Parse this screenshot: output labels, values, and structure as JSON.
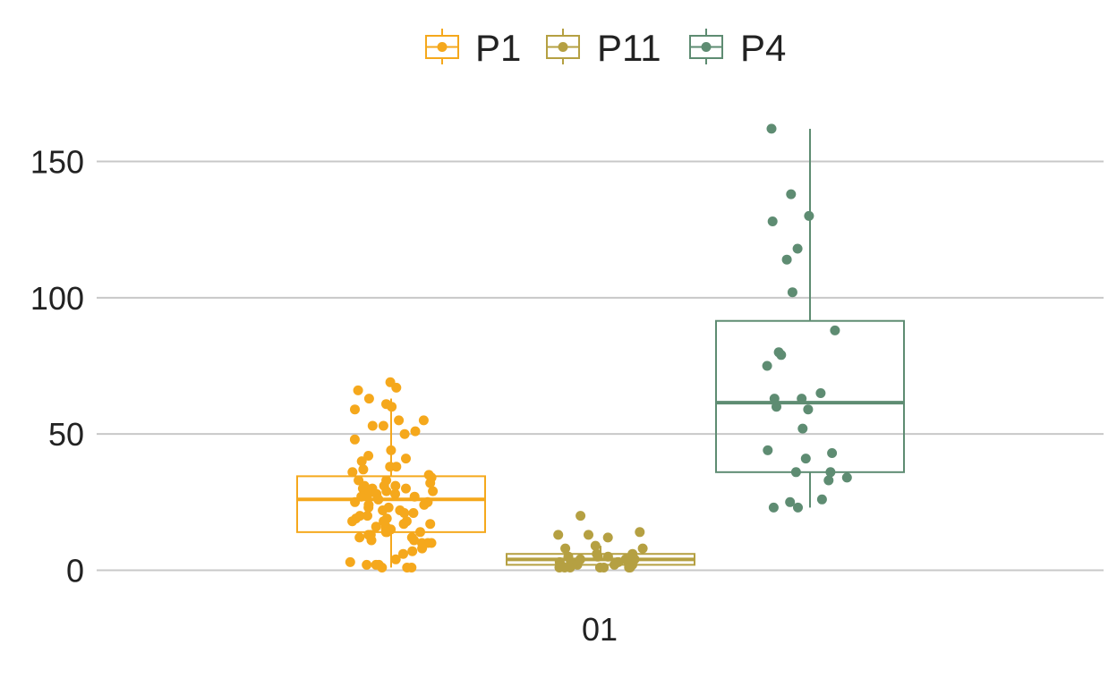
{
  "chart_data": {
    "type": "box",
    "categories": [
      "01"
    ],
    "y_ticks": [
      0,
      50,
      100,
      150
    ],
    "ylim": [
      -12,
      167
    ],
    "grid": "horizontal",
    "legend_position": "top",
    "series": [
      {
        "name": "P1",
        "color": "#F5A81C",
        "box": {
          "q1": 14,
          "median": 26,
          "q3": 34.5,
          "whisker_low": 1,
          "whisker_high": 63
        },
        "points": [
          69,
          67,
          66,
          63,
          61,
          60,
          59,
          55,
          55,
          53,
          53,
          51,
          50,
          48,
          44,
          42,
          41,
          40,
          38,
          38,
          37,
          36,
          35,
          34,
          33,
          33,
          32,
          31,
          31,
          31,
          30,
          30,
          30,
          29,
          29,
          28,
          28,
          28,
          27,
          27,
          26,
          26,
          25,
          25,
          24,
          24,
          23,
          23,
          22,
          22,
          21,
          21,
          20,
          20,
          19,
          19,
          18,
          18,
          18,
          17,
          17,
          16,
          16,
          15,
          15,
          14,
          14,
          14,
          13,
          13,
          12,
          12,
          11,
          11,
          10,
          10,
          10,
          8,
          7,
          6,
          4,
          3,
          2,
          2,
          2,
          1,
          1,
          1
        ]
      },
      {
        "name": "P11",
        "color": "#B5A042",
        "box": {
          "q1": 2,
          "median": 4,
          "q3": 6,
          "whisker_low": 1,
          "whisker_high": 9
        },
        "points": [
          20,
          14,
          13,
          13,
          12,
          9,
          8,
          8,
          6,
          6,
          5,
          5,
          5,
          4,
          4,
          4,
          3,
          3,
          3,
          3,
          2,
          2,
          2,
          2,
          2,
          2,
          1,
          1,
          1,
          1,
          1,
          1,
          1
        ]
      },
      {
        "name": "P4",
        "color": "#5E8C72",
        "box": {
          "q1": 36,
          "median": 61.5,
          "q3": 91.5,
          "whisker_low": 23,
          "whisker_high": 162
        },
        "points": [
          162,
          138,
          130,
          128,
          118,
          114,
          102,
          88,
          80,
          79,
          75,
          65,
          63,
          63,
          60,
          59,
          52,
          44,
          43,
          41,
          36,
          36,
          34,
          33,
          26,
          25,
          23,
          23
        ]
      }
    ]
  }
}
